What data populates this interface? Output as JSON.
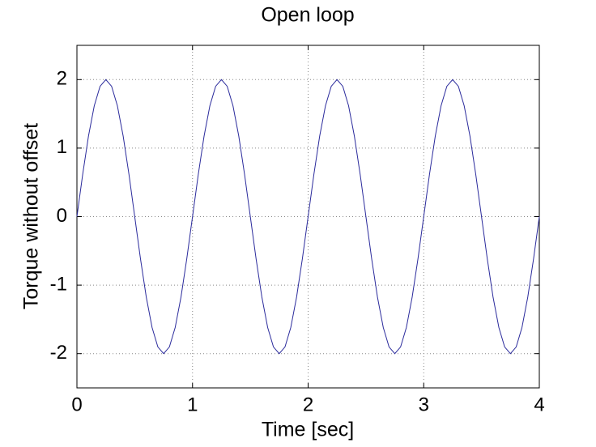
{
  "chart_data": {
    "type": "line",
    "title": "Open loop",
    "xlabel": "Time [sec]",
    "ylabel": "Torque without offset",
    "x": [
      0,
      0.05,
      0.1,
      0.15,
      0.2,
      0.25,
      0.3,
      0.35,
      0.4,
      0.45,
      0.5,
      0.55,
      0.6,
      0.65,
      0.7,
      0.75,
      0.8,
      0.85,
      0.9,
      0.95,
      1,
      1.05,
      1.1,
      1.15,
      1.2,
      1.25,
      1.3,
      1.35,
      1.4,
      1.45,
      1.5,
      1.55,
      1.6,
      1.65,
      1.7,
      1.75,
      1.8,
      1.85,
      1.9,
      1.95,
      2,
      2.05,
      2.1,
      2.15,
      2.2,
      2.25,
      2.3,
      2.35,
      2.4,
      2.45,
      2.5,
      2.55,
      2.6,
      2.65,
      2.7,
      2.75,
      2.8,
      2.85,
      2.9,
      2.95,
      3,
      3.05,
      3.1,
      3.15,
      3.2,
      3.25,
      3.3,
      3.35,
      3.4,
      3.45,
      3.5,
      3.55,
      3.6,
      3.65,
      3.7,
      3.75,
      3.8,
      3.85,
      3.9,
      3.95,
      4
    ],
    "series": [
      {
        "color": "#2b2b9c",
        "values": [
          0,
          0.618,
          1.176,
          1.618,
          1.902,
          2,
          1.902,
          1.618,
          1.176,
          0.618,
          0,
          -0.618,
          -1.176,
          -1.618,
          -1.902,
          -2,
          -1.902,
          -1.618,
          -1.176,
          -0.618,
          0,
          0.618,
          1.176,
          1.618,
          1.902,
          2,
          1.902,
          1.618,
          1.176,
          0.618,
          0,
          -0.618,
          -1.176,
          -1.618,
          -1.902,
          -2,
          -1.902,
          -1.618,
          -1.176,
          -0.618,
          0,
          0.618,
          1.176,
          1.618,
          1.902,
          2,
          1.902,
          1.618,
          1.176,
          0.618,
          0,
          -0.618,
          -1.176,
          -1.618,
          -1.902,
          -2,
          -1.902,
          -1.618,
          -1.176,
          -0.618,
          0,
          0.618,
          1.176,
          1.618,
          1.902,
          2,
          1.902,
          1.618,
          1.176,
          0.618,
          0,
          -0.618,
          -1.176,
          -1.618,
          -1.902,
          -2,
          -1.902,
          -1.618,
          -1.176,
          -0.618,
          0
        ]
      }
    ],
    "xlim": [
      0,
      4
    ],
    "xticks": [
      0,
      1,
      2,
      3,
      4
    ],
    "ylim": [
      -2.5,
      2.5
    ],
    "yticks": [
      -2,
      -1,
      0,
      1,
      2
    ],
    "grid": true
  }
}
